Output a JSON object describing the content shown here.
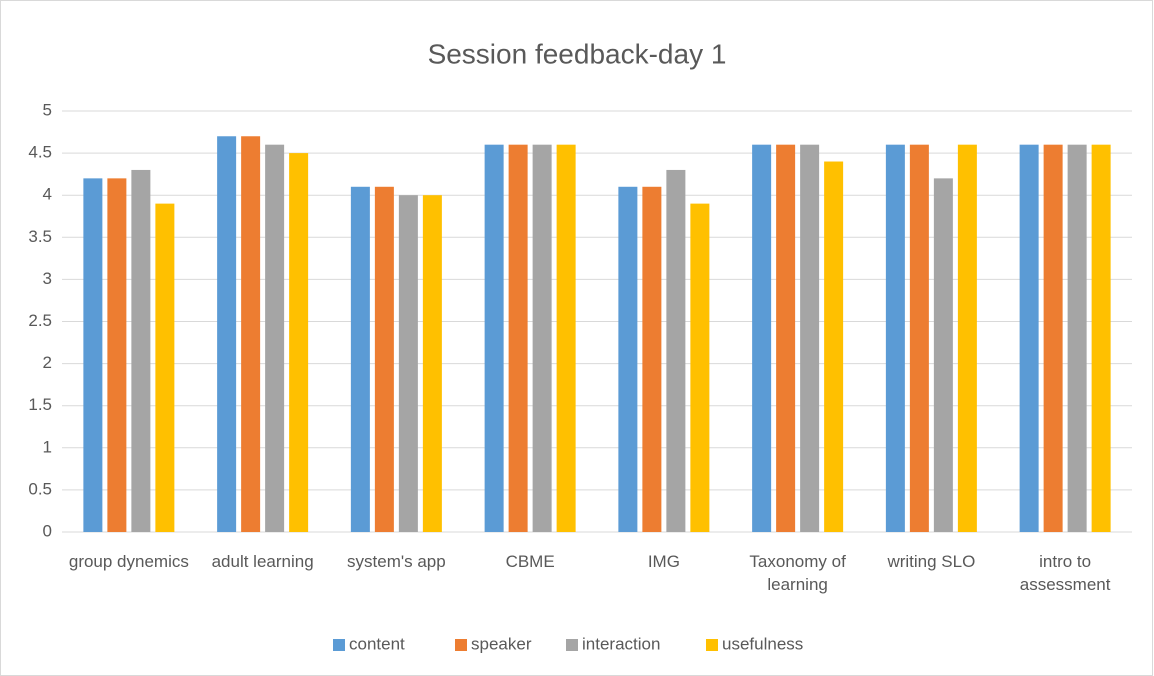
{
  "chart_data": {
    "type": "bar",
    "title": "Session feedback-day 1",
    "categories": [
      "group dynemics",
      "adult learning",
      "system's app",
      "CBME",
      "IMG",
      "Taxonomy of learning",
      "writing SLO",
      "intro to assessment"
    ],
    "series": [
      {
        "name": "content",
        "color": "#5b9bd5",
        "values": [
          4.2,
          4.7,
          4.1,
          4.6,
          4.1,
          4.6,
          4.6,
          4.6
        ]
      },
      {
        "name": "speaker",
        "color": "#ed7d31",
        "values": [
          4.2,
          4.7,
          4.1,
          4.6,
          4.1,
          4.6,
          4.6,
          4.6
        ]
      },
      {
        "name": "interaction",
        "color": "#a5a5a5",
        "values": [
          4.3,
          4.6,
          4.0,
          4.6,
          4.3,
          4.6,
          4.2,
          4.6
        ]
      },
      {
        "name": "usefulness",
        "color": "#ffc000",
        "values": [
          3.9,
          4.5,
          4.0,
          4.6,
          3.9,
          4.4,
          4.6,
          4.6
        ]
      }
    ],
    "ylim": [
      0,
      5
    ],
    "yticks": [
      0,
      0.5,
      1,
      1.5,
      2,
      2.5,
      3,
      3.5,
      4,
      4.5,
      5
    ],
    "grid": true,
    "legend": "bottom"
  }
}
